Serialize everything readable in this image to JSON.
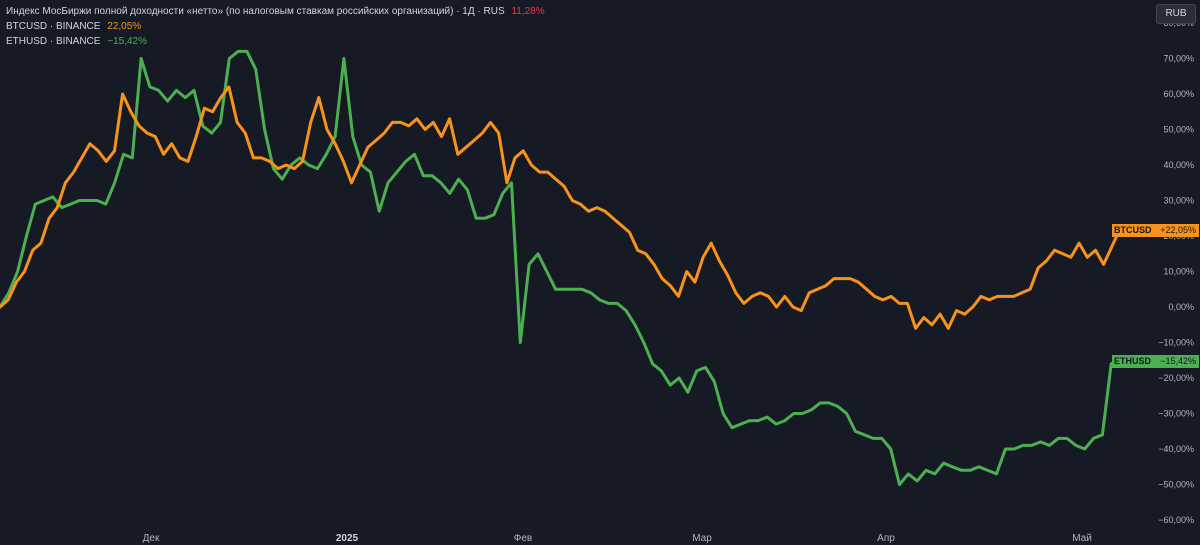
{
  "legend": {
    "index_name": "Индекс МосБиржи полной доходности «нетто» (по налоговым ставкам российских организаций) · 1Д · RUS",
    "index_value": "11,28%",
    "btc_name": "BTCUSD · BINANCE",
    "btc_value": "22,05%",
    "eth_name": "ETHUSD · BINANCE",
    "eth_value": "−15,42%"
  },
  "currency_button": "RUB",
  "tags": {
    "btc_label": "BTCUSD",
    "btc_value": "+22,05%",
    "eth_label": "ETHUSD",
    "eth_value": "−15,42%"
  },
  "colors": {
    "background": "#161a25",
    "btc": "#f7931a",
    "eth": "#4caf50",
    "index_value": "#f23645",
    "grid": "#262a35",
    "axis_text": "#b2b5be"
  },
  "chart_data": {
    "type": "line",
    "xlabel": "",
    "ylabel": "",
    "x_ticks": [
      "Дек",
      "2025",
      "Фев",
      "Мар",
      "Апр",
      "Май"
    ],
    "y_ticks": [
      "80,00%",
      "70,00%",
      "60,00%",
      "50,00%",
      "40,00%",
      "30,00%",
      "20,00%",
      "10,00%",
      "0,00%",
      "−10,00%",
      "−20,00%",
      "−30,00%",
      "−40,00%",
      "−50,00%",
      "−60,00%"
    ],
    "ylim": [
      -62,
      84
    ],
    "grid": false,
    "legend_position": "top-left",
    "series": [
      {
        "name": "BTCUSD",
        "values": [
          0,
          2,
          7,
          10,
          16,
          18,
          25,
          28,
          35,
          38,
          42,
          46,
          44,
          41,
          44,
          60,
          55,
          51,
          49,
          48,
          43,
          46,
          42,
          41,
          48,
          56,
          55,
          59,
          62,
          52,
          49,
          42,
          42,
          41,
          39,
          40,
          39,
          41,
          52,
          59,
          50,
          46,
          41,
          35,
          40,
          45,
          47,
          49,
          52,
          52,
          51,
          53,
          50,
          52,
          48,
          53,
          43,
          45,
          47,
          49,
          52,
          49,
          35,
          42,
          44,
          40,
          38,
          38,
          36,
          34,
          30,
          29,
          27,
          28,
          27,
          25,
          23,
          21,
          16,
          15,
          12,
          8,
          6,
          3,
          10,
          7,
          14,
          18,
          13,
          9,
          4,
          1,
          3,
          4,
          3,
          0,
          3,
          0,
          -1,
          4,
          5,
          6,
          8,
          8,
          8,
          7,
          5,
          3,
          2,
          3,
          1,
          1,
          -6,
          -3,
          -5,
          -2,
          -6,
          -1,
          -2,
          0,
          3,
          2,
          3,
          3,
          3,
          4,
          5,
          11,
          13,
          16,
          15,
          14,
          18,
          14,
          16,
          12,
          17,
          22
        ]
      },
      {
        "name": "ETHUSD",
        "values": [
          0,
          4,
          10,
          20,
          29,
          30,
          31,
          28,
          29,
          30,
          30,
          30,
          29,
          35,
          43,
          42,
          70,
          62,
          61,
          58,
          61,
          59,
          61,
          51,
          49,
          52,
          70,
          72,
          72,
          67,
          50,
          39,
          36,
          40,
          42,
          40,
          39,
          43,
          48,
          70,
          48,
          40,
          38,
          27,
          35,
          38,
          41,
          43,
          37,
          37,
          35,
          32,
          36,
          33,
          25,
          25,
          26,
          32,
          35,
          -10,
          12,
          15,
          10,
          5,
          5,
          5,
          5,
          4,
          2,
          1,
          1,
          -1,
          -5,
          -10,
          -16,
          -18,
          -22,
          -20,
          -24,
          -18,
          -17,
          -21,
          -30,
          -34,
          -33,
          -32,
          -32,
          -31,
          -33,
          -32,
          -30,
          -30,
          -29,
          -27,
          -27,
          -28,
          -30,
          -35,
          -36,
          -37,
          -37,
          -40,
          -50,
          -47,
          -49,
          -46,
          -47,
          -44,
          -45,
          -46,
          -46,
          -45,
          -46,
          -47,
          -40,
          -40,
          -39,
          -39,
          -38,
          -39,
          -37,
          -37,
          -39,
          -40,
          -37,
          -36,
          -16,
          -15
        ]
      }
    ]
  }
}
